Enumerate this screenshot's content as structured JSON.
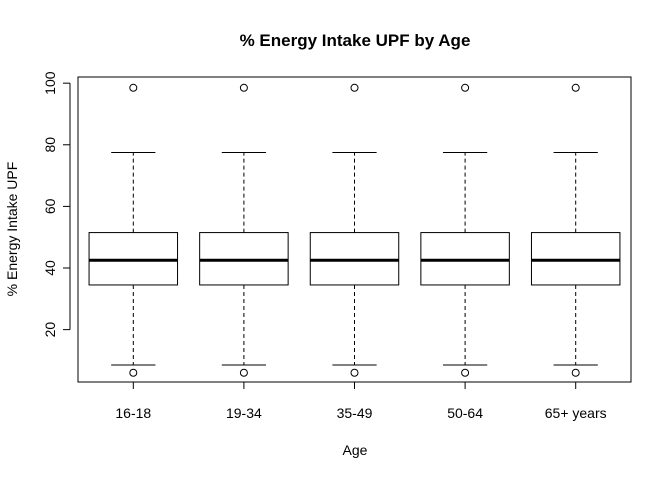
{
  "chart_data": {
    "type": "boxplot",
    "title": "% Energy Intake UPF by Age",
    "xlabel": "Age",
    "ylabel": "% Energy Intake UPF",
    "categories": [
      "16-18",
      "19-34",
      "35-49",
      "50-64",
      "65+ years"
    ],
    "ylim": [
      3,
      102
    ],
    "yticks": [
      20,
      40,
      60,
      80,
      100
    ],
    "boxes": [
      {
        "category": "16-18",
        "whisker_low": 8.5,
        "q1": 34.5,
        "median": 42.5,
        "q3": 51.5,
        "whisker_high": 77.5,
        "outliers": [
          98.5,
          6.0
        ]
      },
      {
        "category": "19-34",
        "whisker_low": 8.5,
        "q1": 34.5,
        "median": 42.5,
        "q3": 51.5,
        "whisker_high": 77.5,
        "outliers": [
          98.5,
          6.0
        ]
      },
      {
        "category": "35-49",
        "whisker_low": 8.5,
        "q1": 34.5,
        "median": 42.5,
        "q3": 51.5,
        "whisker_high": 77.5,
        "outliers": [
          98.5,
          6.0
        ]
      },
      {
        "category": "50-64",
        "whisker_low": 8.5,
        "q1": 34.5,
        "median": 42.5,
        "q3": 51.5,
        "whisker_high": 77.5,
        "outliers": [
          98.5,
          6.0
        ]
      },
      {
        "category": "65+ years",
        "whisker_low": 8.5,
        "q1": 34.5,
        "median": 42.5,
        "q3": 51.5,
        "whisker_high": 77.5,
        "outliers": [
          98.5,
          6.0
        ]
      }
    ],
    "grid": false,
    "colors": {
      "box_fill": "#ffffff",
      "stroke": "#000000"
    }
  }
}
